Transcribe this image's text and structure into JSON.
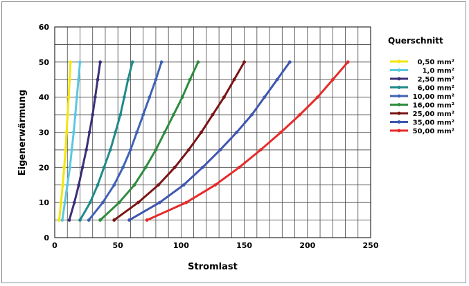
{
  "chart_data": {
    "type": "line",
    "title": "",
    "xlabel": "Stromlast",
    "ylabel": "Eigenerwärmung",
    "xlim": [
      0,
      250
    ],
    "ylim": [
      0,
      60
    ],
    "x_ticks": [
      0,
      50,
      100,
      150,
      200,
      250
    ],
    "y_ticks": [
      0,
      10,
      20,
      30,
      40,
      50,
      60
    ],
    "x_tick_labels": [
      "0",
      "50",
      "100",
      "150",
      "200",
      "250"
    ],
    "y_tick_labels": [
      "0",
      "10",
      "20",
      "30",
      "40",
      "50",
      "60"
    ],
    "grid": true,
    "legend_title": "Querschnitt",
    "legend_position": "right",
    "series": [
      {
        "name": "0,50 mm²",
        "color": "#f2e60f",
        "x": [
          3.5,
          5.0,
          6.3,
          7.5,
          8.5,
          9.4,
          10.2,
          11.0,
          11.8,
          12.5
        ],
        "y": [
          5,
          10,
          15,
          20,
          25,
          30,
          35,
          40,
          45,
          50
        ]
      },
      {
        "name": "1,0 mm²",
        "color": "#5bc8e0",
        "x": [
          6.0,
          8.0,
          10.0,
          12.0,
          13.5,
          15.0,
          16.3,
          17.5,
          18.8,
          20.0
        ],
        "y": [
          5,
          10,
          15,
          20,
          25,
          30,
          35,
          40,
          45,
          50
        ]
      },
      {
        "name": "2,50 mm²",
        "color": "#3b2f7a",
        "x": [
          11.5,
          15.5,
          19.0,
          22.0,
          25.0,
          27.5,
          30.0,
          32.0,
          34.0,
          36.0
        ],
        "y": [
          5,
          10,
          15,
          20,
          25,
          30,
          35,
          40,
          45,
          50
        ]
      },
      {
        "name": "6,00 mm²",
        "color": "#1f8a8a",
        "x": [
          20.0,
          28.0,
          34.0,
          39.0,
          44.0,
          48.0,
          52.0,
          55.0,
          58.0,
          61.5
        ],
        "y": [
          5,
          10,
          15,
          20,
          25,
          30,
          35,
          40,
          45,
          50
        ]
      },
      {
        "name": "10,00 mm²",
        "color": "#3e62b5",
        "x": [
          27.0,
          38.0,
          47.0,
          54.0,
          60.0,
          65.0,
          70.0,
          75.0,
          80.0,
          84.5
        ],
        "y": [
          5,
          10,
          15,
          20,
          25,
          30,
          35,
          40,
          45,
          50
        ]
      },
      {
        "name": "16,00 mm²",
        "color": "#2e8b3e",
        "x": [
          36.0,
          51.0,
          63.0,
          72.0,
          80.0,
          87.0,
          94.0,
          101.0,
          107.0,
          113.5
        ],
        "y": [
          5,
          10,
          15,
          20,
          25,
          30,
          35,
          40,
          45,
          50
        ]
      },
      {
        "name": "25,00 mm²",
        "color": "#7a1515",
        "x": [
          47.0,
          66.0,
          82.0,
          95.0,
          106.0,
          116.0,
          125.0,
          134.0,
          142.0,
          150.0
        ],
        "y": [
          5,
          10,
          15,
          20,
          25,
          30,
          35,
          40,
          45,
          50
        ]
      },
      {
        "name": "35,00 mm²",
        "color": "#3e56b0",
        "x": [
          59.0,
          83.0,
          102.0,
          117.0,
          131.0,
          144.0,
          156.0,
          166.0,
          176.0,
          186.0
        ],
        "y": [
          5,
          10,
          15,
          20,
          25,
          30,
          35,
          40,
          45,
          50
        ]
      },
      {
        "name": "50,00 mm²",
        "color": "#e62a2a",
        "x": [
          73.0,
          104.0,
          127.0,
          146.0,
          163.0,
          179.0,
          194.0,
          208.0,
          220.0,
          232.0
        ],
        "y": [
          5,
          10,
          15,
          20,
          25,
          30,
          35,
          40,
          45,
          50
        ]
      }
    ]
  }
}
